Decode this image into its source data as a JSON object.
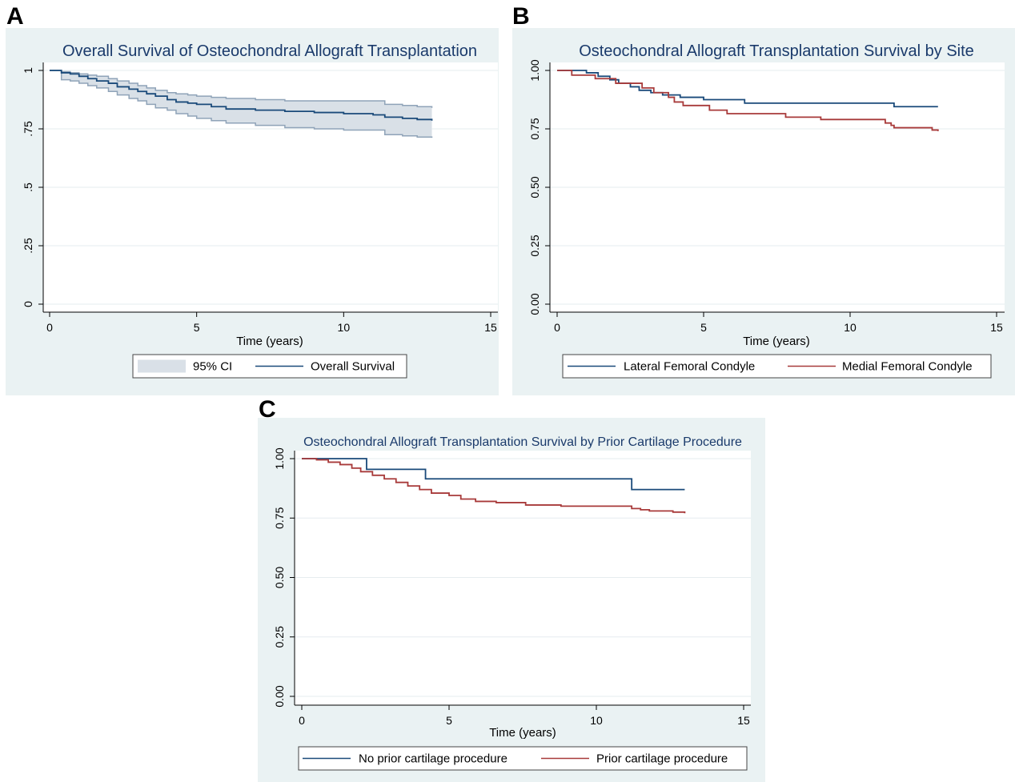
{
  "panels": [
    {
      "letter": "A"
    },
    {
      "letter": "B"
    },
    {
      "letter": "C"
    }
  ],
  "colors": {
    "panel_background": "#eaf2f3",
    "plot_background": "#ffffff",
    "title": "#1a3a6b",
    "navy_line": "#1a4a7a",
    "maroon_line": "#a83a3a",
    "ci_fill": "#d9e0e7",
    "ci_border": "#8fa3b8"
  },
  "chart_data": [
    {
      "type": "line",
      "title": "Overall Survival of Osteochondral Allograft Transplantation",
      "xlabel": "Time (years)",
      "ylabel": "",
      "xlim": [
        0,
        15
      ],
      "ylim": [
        0,
        1
      ],
      "xticks": [
        0,
        5,
        10,
        15
      ],
      "xtick_labels": [
        "0",
        "5",
        "10",
        "15"
      ],
      "yticks": [
        0,
        0.25,
        0.5,
        0.75,
        1
      ],
      "ytick_labels": [
        "0",
        ".25",
        ".5",
        ".75",
        "1"
      ],
      "grid": true,
      "legend_position": "bottom",
      "legend": [
        "95% CI",
        "Overall Survival"
      ],
      "band": {
        "name": "95% CI",
        "x": [
          0,
          0.4,
          0.7,
          1.0,
          1.3,
          1.6,
          2.0,
          2.3,
          2.7,
          3.0,
          3.3,
          3.6,
          4.0,
          4.3,
          4.7,
          5.0,
          5.5,
          6.0,
          7.0,
          8.0,
          9.0,
          10.0,
          11.0,
          11.4,
          12.0,
          12.5,
          13.0
        ],
        "lower": [
          1.0,
          0.96,
          0.955,
          0.945,
          0.935,
          0.925,
          0.91,
          0.895,
          0.88,
          0.87,
          0.855,
          0.84,
          0.83,
          0.815,
          0.805,
          0.795,
          0.785,
          0.775,
          0.765,
          0.755,
          0.75,
          0.745,
          0.745,
          0.725,
          0.72,
          0.715,
          0.712
        ],
        "upper": [
          1.0,
          0.995,
          0.99,
          0.985,
          0.98,
          0.975,
          0.965,
          0.955,
          0.945,
          0.935,
          0.925,
          0.915,
          0.905,
          0.9,
          0.895,
          0.89,
          0.885,
          0.88,
          0.875,
          0.87,
          0.87,
          0.87,
          0.87,
          0.855,
          0.85,
          0.845,
          0.84
        ]
      },
      "series": [
        {
          "name": "Overall Survival",
          "color": "#1a4a7a",
          "x": [
            0,
            0.4,
            0.7,
            1.0,
            1.3,
            1.6,
            2.0,
            2.3,
            2.7,
            3.0,
            3.3,
            3.6,
            4.0,
            4.3,
            4.7,
            5.0,
            5.5,
            6.0,
            7.0,
            8.0,
            9.0,
            10.0,
            11.0,
            11.4,
            12.0,
            12.5,
            13.0
          ],
          "y": [
            1.0,
            0.99,
            0.985,
            0.975,
            0.965,
            0.955,
            0.945,
            0.93,
            0.92,
            0.91,
            0.9,
            0.89,
            0.875,
            0.865,
            0.86,
            0.855,
            0.845,
            0.835,
            0.83,
            0.825,
            0.82,
            0.815,
            0.81,
            0.8,
            0.795,
            0.79,
            0.785
          ]
        }
      ]
    },
    {
      "type": "line",
      "title": "Osteochondral Allograft Transplantation Survival by Site",
      "xlabel": "Time (years)",
      "ylabel": "",
      "xlim": [
        0,
        15
      ],
      "ylim": [
        0,
        1
      ],
      "xticks": [
        0,
        5,
        10,
        15
      ],
      "xtick_labels": [
        "0",
        "5",
        "10",
        "15"
      ],
      "yticks": [
        0,
        0.25,
        0.5,
        0.75,
        1
      ],
      "ytick_labels": [
        "0.00",
        "0.25",
        "0.50",
        "0.75",
        "1.00"
      ],
      "grid": true,
      "legend_position": "bottom",
      "legend": [
        "Lateral Femoral Condyle",
        "Medial Femoral Condyle"
      ],
      "series": [
        {
          "name": "Lateral Femoral Condyle",
          "color": "#1a4a7a",
          "x": [
            0,
            1.0,
            1.4,
            1.8,
            2.1,
            2.5,
            2.8,
            3.2,
            3.6,
            4.2,
            5.0,
            6.4,
            11.5,
            13.0
          ],
          "y": [
            1.0,
            0.99,
            0.975,
            0.96,
            0.945,
            0.93,
            0.915,
            0.905,
            0.895,
            0.885,
            0.875,
            0.86,
            0.845,
            0.845
          ]
        },
        {
          "name": "Medial Femoral Condyle",
          "color": "#a83a3a",
          "x": [
            0,
            0.5,
            1.3,
            2.0,
            2.9,
            3.3,
            3.8,
            4.0,
            4.3,
            5.2,
            5.8,
            7.8,
            9.0,
            11.2,
            11.4,
            11.5,
            12.8,
            13.0
          ],
          "y": [
            1.0,
            0.98,
            0.965,
            0.945,
            0.925,
            0.905,
            0.885,
            0.865,
            0.85,
            0.83,
            0.815,
            0.8,
            0.79,
            0.775,
            0.765,
            0.755,
            0.745,
            0.74
          ]
        }
      ]
    },
    {
      "type": "line",
      "title": "Osteochondral Allograft Transplantation Survival by Prior Cartilage Procedure",
      "xlabel": "Time (years)",
      "ylabel": "",
      "xlim": [
        0,
        15
      ],
      "ylim": [
        0,
        1
      ],
      "xticks": [
        0,
        5,
        10,
        15
      ],
      "xtick_labels": [
        "0",
        "5",
        "10",
        "15"
      ],
      "yticks": [
        0,
        0.25,
        0.5,
        0.75,
        1
      ],
      "ytick_labels": [
        "0.00",
        "0.25",
        "0.50",
        "0.75",
        "1.00"
      ],
      "grid": true,
      "legend_position": "bottom",
      "legend": [
        "No prior cartilage procedure",
        "Prior cartilage procedure"
      ],
      "series": [
        {
          "name": "No prior cartilage procedure",
          "color": "#1a4a7a",
          "x": [
            0,
            2.2,
            4.2,
            11.2,
            13.0
          ],
          "y": [
            1.0,
            0.955,
            0.915,
            0.87,
            0.87
          ]
        },
        {
          "name": "Prior cartilage procedure",
          "color": "#a83a3a",
          "x": [
            0,
            0.5,
            0.9,
            1.3,
            1.7,
            2.0,
            2.4,
            2.8,
            3.2,
            3.6,
            4.0,
            4.4,
            5.0,
            5.4,
            5.9,
            6.6,
            7.6,
            8.8,
            11.2,
            11.5,
            11.8,
            12.6,
            13.0
          ],
          "y": [
            1.0,
            0.995,
            0.985,
            0.975,
            0.96,
            0.945,
            0.93,
            0.915,
            0.9,
            0.885,
            0.87,
            0.855,
            0.845,
            0.83,
            0.82,
            0.815,
            0.805,
            0.8,
            0.79,
            0.785,
            0.78,
            0.775,
            0.77
          ]
        }
      ]
    }
  ]
}
